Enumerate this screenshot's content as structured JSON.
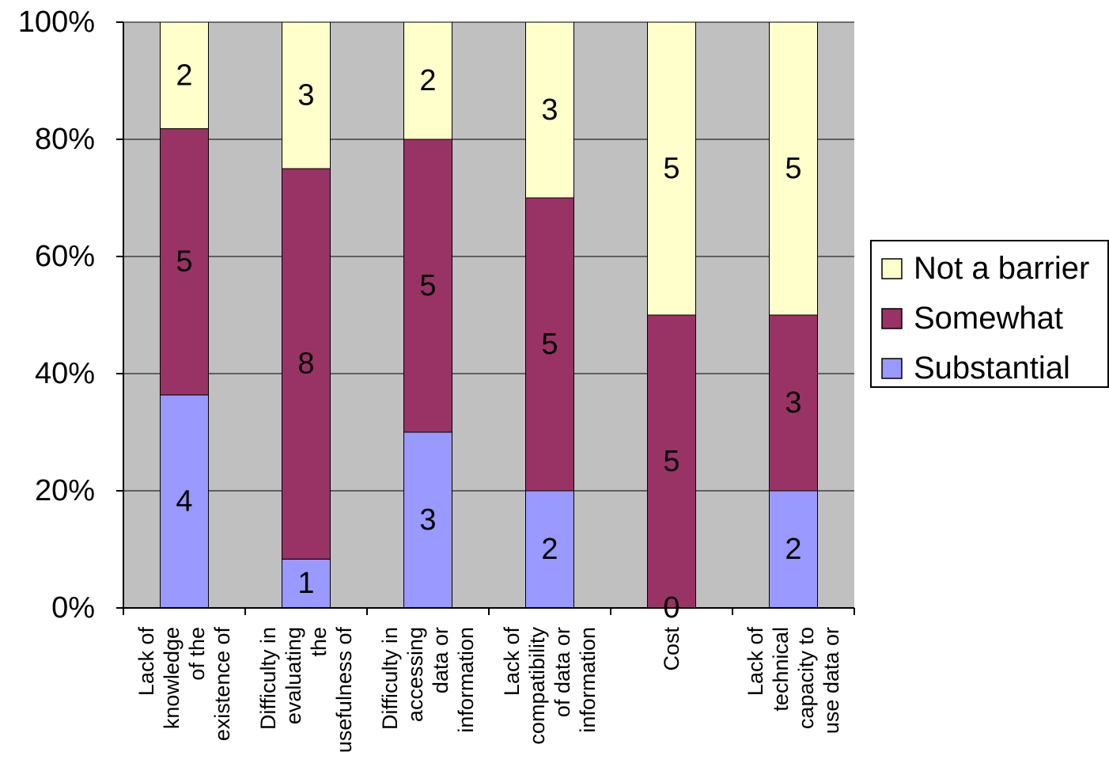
{
  "chart_data": {
    "type": "bar",
    "stacked": "percent",
    "title": "",
    "xlabel": "",
    "ylabel": "",
    "ylim": [
      0,
      100
    ],
    "yticks": [
      "0%",
      "20%",
      "40%",
      "60%",
      "80%",
      "100%"
    ],
    "categories": [
      "Lack of knowledge of the existence of",
      "Difficulty in evaluating the usefulness of",
      "Difficulty in accessing data or information",
      "Lack of compatibility of data or information",
      "Cost",
      "Lack of technical capacity to use data or"
    ],
    "tick_label_lines": [
      [
        "Lack of",
        "knowledge",
        "of the",
        "existence of"
      ],
      [
        "Difficulty in",
        "evaluating",
        "the",
        "usefulness of"
      ],
      [
        "Difficulty in",
        "accessing",
        "data or",
        "information"
      ],
      [
        "Lack of",
        "compatibility",
        "of data or",
        "information"
      ],
      [
        "Cost"
      ],
      [
        "Lack of",
        "technical",
        "capacity to",
        "use data or"
      ]
    ],
    "series": [
      {
        "name": "Substantial",
        "color": "#9999ff",
        "values": [
          4,
          1,
          3,
          2,
          0,
          2
        ]
      },
      {
        "name": "Somewhat",
        "color": "#993366",
        "values": [
          5,
          8,
          5,
          5,
          5,
          3
        ]
      },
      {
        "name": "Not a barrier",
        "color": "#ffffcc",
        "values": [
          2,
          3,
          2,
          3,
          5,
          5
        ]
      }
    ],
    "legend_order": [
      "Not a barrier",
      "Somewhat",
      "Substantial"
    ],
    "legend_position": "right",
    "grid": true,
    "plot_background": "#c0c0c0"
  }
}
